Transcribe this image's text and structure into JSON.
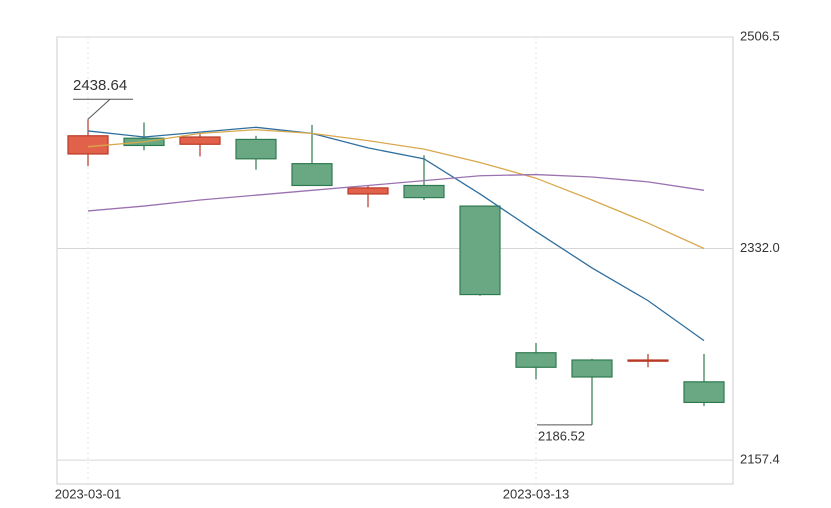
{
  "chart_data": {
    "type": "candlestick",
    "categories": [
      "2023-03-01",
      null,
      null,
      null,
      null,
      null,
      null,
      null,
      "2023-03-13",
      null,
      null,
      null
    ],
    "open": [
      2410,
      2423,
      2418,
      2422,
      2402,
      2377,
      2384,
      2367,
      2246,
      2240,
      2239,
      2222
    ],
    "high": [
      2438.64,
      2436,
      2427,
      2425,
      2434,
      2384,
      2409,
      2367,
      2254,
      2241,
      2245,
      2245
    ],
    "low": [
      2400,
      2413,
      2408,
      2397,
      2384,
      2366,
      2372,
      2293,
      2224,
      2186.52,
      2234,
      2202
    ],
    "close": [
      2425,
      2417,
      2424,
      2406,
      2384,
      2382,
      2374,
      2294,
      2234,
      2226,
      2240,
      2205
    ],
    "up_color": "#e2614b",
    "down_color": "#6aa884",
    "series": [
      {
        "color": "#2f6f9f",
        "values": [
          2429,
          2424,
          2428,
          2432,
          2427,
          2415,
          2406,
          2377,
          2346,
          2316,
          2289,
          2256
        ]
      },
      {
        "color": "#d9a84e",
        "values": [
          2416,
          2420,
          2427,
          2430,
          2427,
          2421,
          2414,
          2403,
          2390,
          2372,
          2353,
          2332
        ]
      },
      {
        "color": "#9b72b0",
        "values": [
          2363,
          2367,
          2372,
          2376,
          2380,
          2384,
          2388,
          2392,
          2393,
          2391,
          2387,
          2380
        ]
      }
    ],
    "ylim": [
      2137.7,
      2506.5
    ],
    "yticks": [
      2157.4,
      {
        "value": 2332,
        "label": "2332.0"
      },
      2506.5
    ],
    "grid": true
  }
}
